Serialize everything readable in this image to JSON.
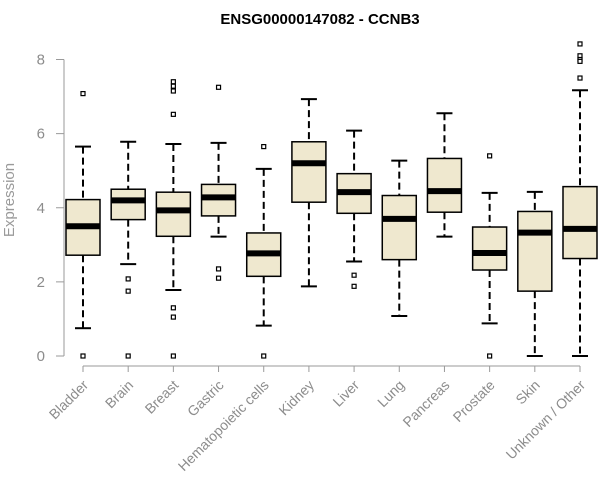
{
  "chart_data": {
    "type": "boxplot",
    "title": "ENSG00000147082 - CCNB3",
    "xlabel": "",
    "ylabel": "Expression",
    "ylim": [
      0,
      8.4
    ],
    "yticks": [
      0,
      2,
      4,
      6,
      8
    ],
    "grid": false,
    "box_color": "#efe8cf",
    "categories": [
      "Bladder",
      "Brain",
      "Breast",
      "Gastric",
      "Hematopoietic cells",
      "Kidney",
      "Liver",
      "Lung",
      "Pancreas",
      "Prostate",
      "Skin",
      "Unknown / Other"
    ],
    "boxes": [
      {
        "min": 0.75,
        "q1": 2.72,
        "median": 3.5,
        "q3": 4.22,
        "max": 5.65,
        "outliers": [
          7.08,
          0.0
        ]
      },
      {
        "min": 2.48,
        "q1": 3.68,
        "median": 4.2,
        "q3": 4.5,
        "max": 5.78,
        "outliers": [
          2.08,
          1.75,
          0.0
        ]
      },
      {
        "min": 1.78,
        "q1": 3.23,
        "median": 3.93,
        "q3": 4.42,
        "max": 5.72,
        "outliers": [
          7.4,
          7.28,
          7.15,
          6.52,
          1.3,
          1.05,
          0.0
        ]
      },
      {
        "min": 3.22,
        "q1": 3.78,
        "median": 4.28,
        "q3": 4.63,
        "max": 5.75,
        "outliers": [
          7.25,
          2.35,
          2.1
        ]
      },
      {
        "min": 0.82,
        "q1": 2.15,
        "median": 2.77,
        "q3": 3.32,
        "max": 5.05,
        "outliers": [
          5.65,
          0.0
        ]
      },
      {
        "min": 1.88,
        "q1": 4.15,
        "median": 5.2,
        "q3": 5.78,
        "max": 6.93,
        "outliers": []
      },
      {
        "min": 2.55,
        "q1": 3.85,
        "median": 4.42,
        "q3": 4.92,
        "max": 6.08,
        "outliers": [
          2.18,
          1.88
        ]
      },
      {
        "min": 1.08,
        "q1": 2.6,
        "median": 3.7,
        "q3": 4.33,
        "max": 5.27,
        "outliers": []
      },
      {
        "min": 3.22,
        "q1": 3.88,
        "median": 4.45,
        "q3": 5.33,
        "max": 6.55,
        "outliers": []
      },
      {
        "min": 0.88,
        "q1": 2.32,
        "median": 2.78,
        "q3": 3.48,
        "max": 4.4,
        "outliers": [
          5.4,
          0.0
        ]
      },
      {
        "min": 0.0,
        "q1": 1.75,
        "median": 3.33,
        "q3": 3.9,
        "max": 4.43,
        "outliers": []
      },
      {
        "min": 0.0,
        "q1": 2.63,
        "median": 3.43,
        "q3": 4.57,
        "max": 7.17,
        "outliers": [
          8.42,
          8.1,
          8.0,
          7.95,
          7.5
        ]
      }
    ]
  }
}
